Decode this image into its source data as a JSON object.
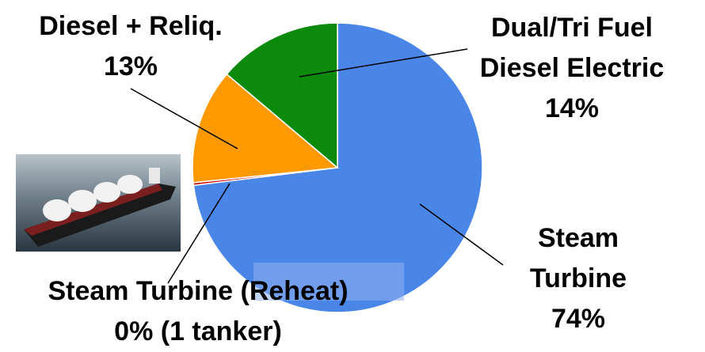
{
  "chart_data": {
    "type": "pie",
    "categories": [
      "Steam Turbine",
      "Steam Turbine (Reheat)",
      "Diesel + Reliq.",
      "Dual/Tri Fuel Diesel Electric"
    ],
    "values": [
      74,
      0.3,
      13,
      14
    ],
    "value_labels": [
      "74%",
      "0% (1 tanker)",
      "13%",
      "14%"
    ],
    "colors": [
      "#4a86e8",
      "#cc0000",
      "#ff9900",
      "#0b8a0b"
    ]
  }
}
